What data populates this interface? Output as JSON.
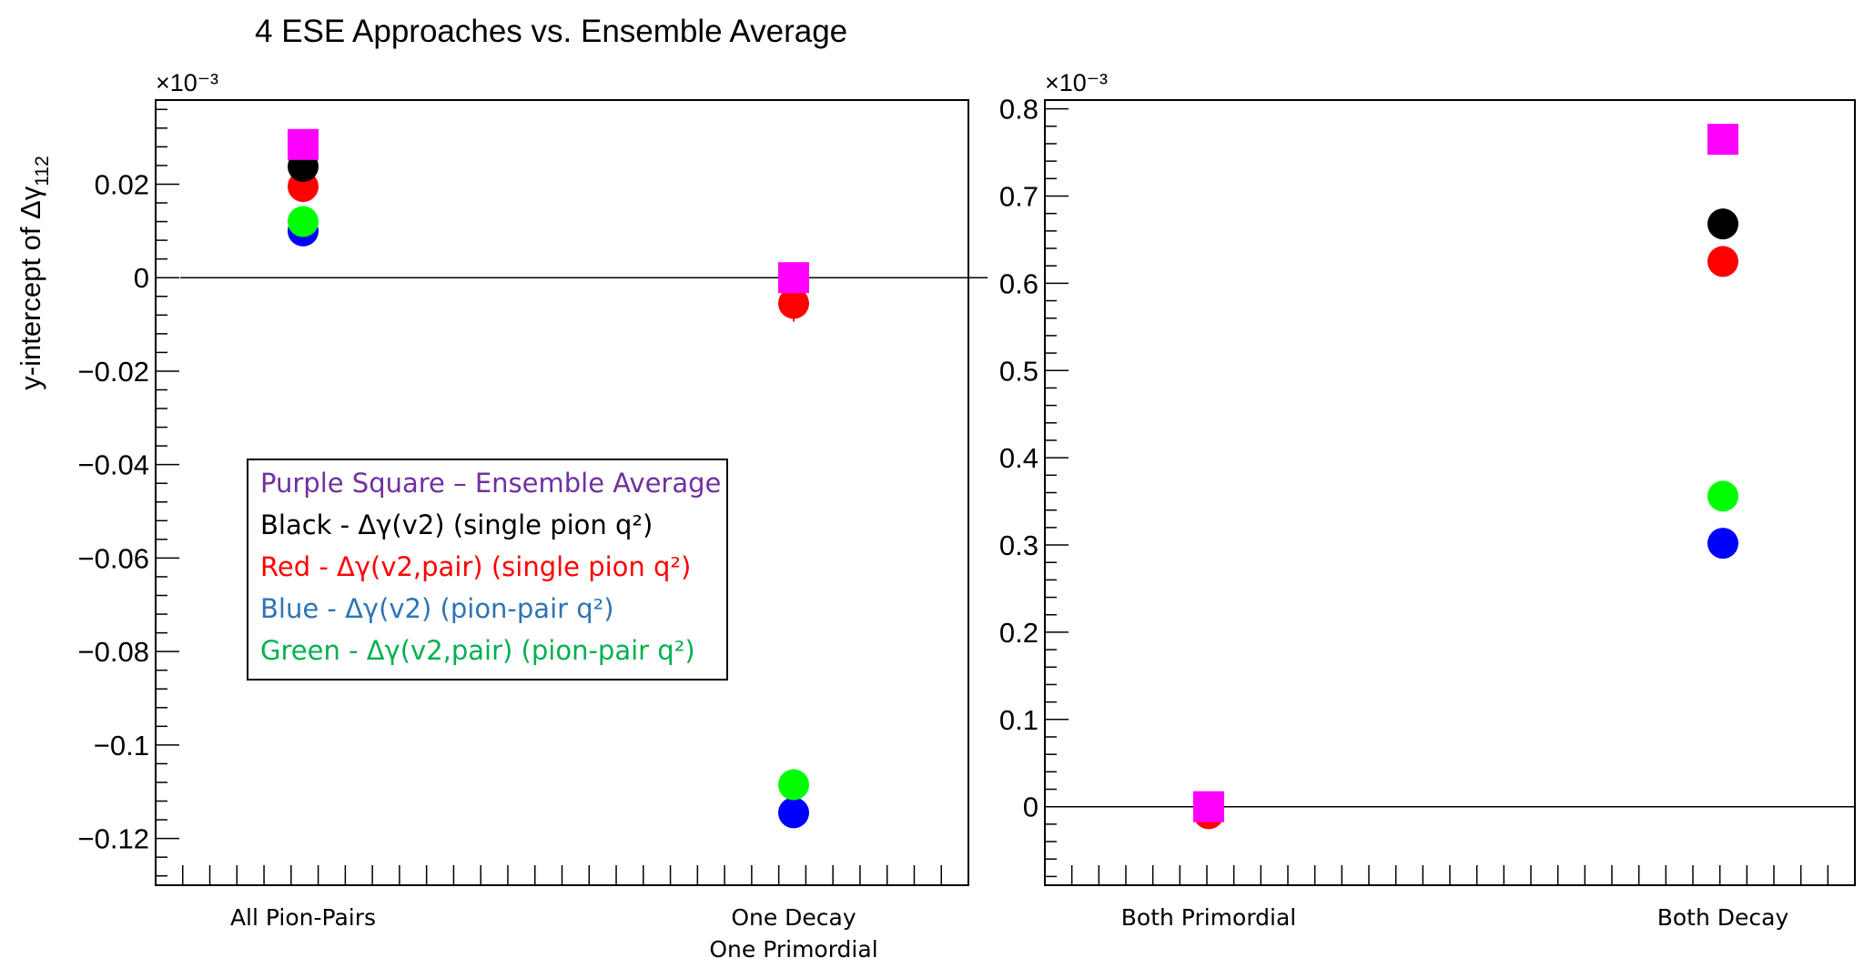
{
  "title": "4 ESE Approaches vs. Ensemble Average",
  "ylabel_main": "y-intercept of Δγ",
  "ylabel_sub": "112",
  "chart_data": [
    {
      "type": "scatter",
      "categories": [
        "All Pion-Pairs",
        "One Decay\nOne Primordial"
      ],
      "exponent_label": "×10⁻³",
      "ylim": [
        -0.13,
        0.038
      ],
      "yticks": [
        0.02,
        0,
        -0.02,
        -0.04,
        -0.06,
        -0.08,
        -0.1,
        -0.12
      ],
      "ytick_labels": [
        "0.02",
        "0",
        "−0.02",
        "−0.04",
        "−0.06",
        "−0.08",
        "−0.1",
        "−0.12"
      ],
      "series": [
        {
          "color": "#ff00ff",
          "marker": "square",
          "values": [
            0.0285,
            0.0
          ]
        },
        {
          "color": "#000000",
          "marker": "circle",
          "values": [
            0.0238,
            null
          ]
        },
        {
          "color": "#ff0000",
          "marker": "circle",
          "values": [
            0.0195,
            -0.0055
          ]
        },
        {
          "color": "#00ff00",
          "marker": "circle",
          "values": [
            0.012,
            -0.1085
          ]
        },
        {
          "color": "#0000ff",
          "marker": "circle",
          "values": [
            0.01,
            -0.1145
          ]
        }
      ]
    },
    {
      "type": "scatter",
      "categories": [
        "Both Primordial",
        "Both Decay"
      ],
      "exponent_label": "×10⁻³",
      "ylim": [
        -0.09,
        0.81
      ],
      "yticks": [
        0.8,
        0.7,
        0.6,
        0.5,
        0.4,
        0.3,
        0.2,
        0.1,
        0
      ],
      "ytick_labels": [
        "0.8",
        "0.7",
        "0.6",
        "0.5",
        "0.4",
        "0.3",
        "0.2",
        "0.1",
        "0"
      ],
      "series": [
        {
          "color": "#ff00ff",
          "marker": "square",
          "values": [
            0.0,
            0.765
          ]
        },
        {
          "color": "#000000",
          "marker": "circle",
          "values": [
            null,
            0.668
          ]
        },
        {
          "color": "#ff0000",
          "marker": "circle",
          "values": [
            -0.008,
            0.625
          ]
        },
        {
          "color": "#00ff00",
          "marker": "circle",
          "values": [
            null,
            0.356
          ]
        },
        {
          "color": "#0000ff",
          "marker": "circle",
          "values": [
            null,
            0.302
          ]
        }
      ]
    }
  ],
  "legend": [
    {
      "color": "#7030a0",
      "text": "Purple Square – Ensemble Average"
    },
    {
      "color": "#000000",
      "text": "Black - Δγ(v2) (single pion q²)"
    },
    {
      "color": "#ff0000",
      "text": "Red - Δγ(v2,pair) (single pion q²)"
    },
    {
      "color": "#2e74b5",
      "text": "Blue - Δγ(v2) (pion-pair q²)"
    },
    {
      "color": "#00b050",
      "text": "Green - Δγ(v2,pair) (pion-pair q²)"
    }
  ]
}
